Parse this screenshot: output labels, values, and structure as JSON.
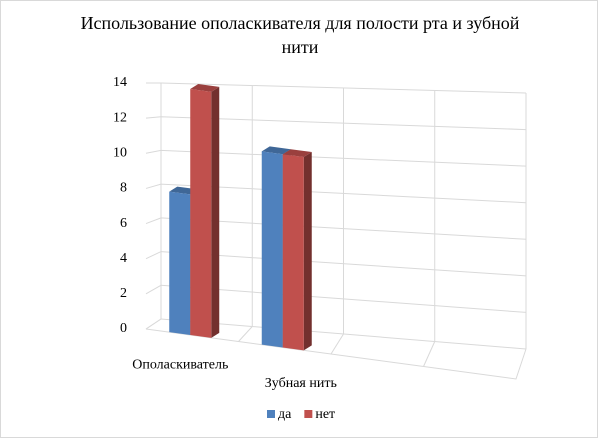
{
  "chart_data": {
    "type": "bar3d",
    "title": "Использование ополаскивателя для полости рта и зубной нити",
    "categories": [
      "Ополаскиватель",
      "Зубная нить",
      null,
      null
    ],
    "series": [
      {
        "name": "да",
        "color": "#4f81bd",
        "values": [
          8,
          11,
          null,
          null
        ]
      },
      {
        "name": "нет",
        "color": "#c0504d",
        "values": [
          14,
          11,
          null,
          null
        ]
      }
    ],
    "ylim": [
      0,
      14
    ],
    "yticks": [
      0,
      2,
      4,
      6,
      8,
      10,
      12,
      14
    ],
    "grid": true,
    "legend": "bottom"
  }
}
